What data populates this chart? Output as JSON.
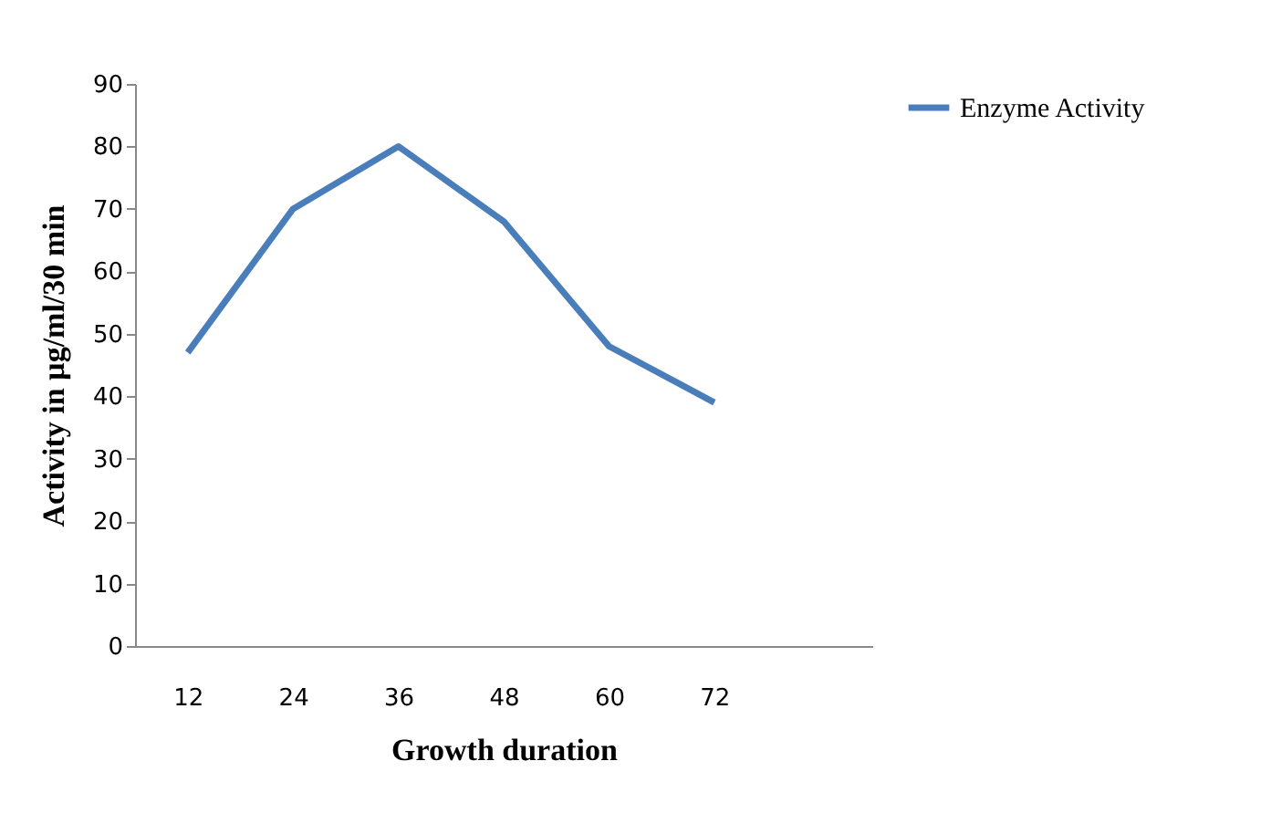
{
  "chart_data": {
    "type": "line",
    "xlabel": "Growth duration",
    "ylabel": "Activity in  µg/ml/30 min",
    "categories": [
      "12",
      "24",
      "36",
      "48",
      "60",
      "72"
    ],
    "series": [
      {
        "name": "Enzyme Activity",
        "color": "#4a7ebb",
        "values": [
          47,
          70,
          80,
          68,
          48,
          39
        ]
      }
    ],
    "ylim": [
      0,
      90
    ],
    "yticks": [
      0,
      10,
      20,
      30,
      40,
      50,
      60,
      70,
      80,
      90
    ],
    "grid": false,
    "legend": "right",
    "marker": "none",
    "line_style": "solid"
  }
}
